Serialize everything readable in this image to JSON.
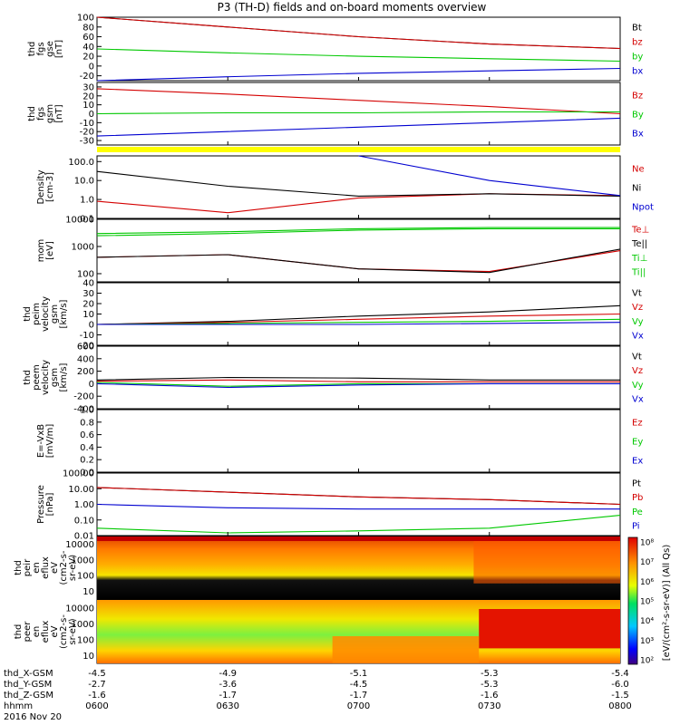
{
  "title": "P3 (TH-D) fields and on-board moments overview",
  "panels": [
    {
      "id": "fgs-dsl",
      "ylabel": [
        "thd",
        "fgs",
        "gse",
        "[nT]"
      ],
      "yticks": [
        "100",
        "80",
        "60",
        "40",
        "20",
        "0",
        "-20"
      ],
      "legend": [
        {
          "text": "Bt",
          "color": "#000000"
        },
        {
          "text": "bz",
          "color": "#d40000"
        },
        {
          "text": "by",
          "color": "#00c800"
        },
        {
          "text": "bx",
          "color": "#0000d0"
        }
      ]
    },
    {
      "id": "fgs-gsm",
      "ylabel": [
        "thd",
        "fgs",
        "gsm",
        "[nT]"
      ],
      "yticks": [
        "30",
        "20",
        "10",
        "0",
        "-10",
        "-20",
        "-30"
      ],
      "legend": [
        {
          "text": "Bz",
          "color": "#d40000"
        },
        {
          "text": "By",
          "color": "#00c800"
        },
        {
          "text": "Bx",
          "color": "#0000d0"
        }
      ]
    },
    {
      "id": "density",
      "ylabel": [
        "Density",
        "[cm-3]"
      ],
      "yticks": [
        "100.0",
        "10.0",
        "1.0",
        "0.1"
      ],
      "legend": [
        {
          "text": "Ne",
          "color": "#d40000"
        },
        {
          "text": "Ni",
          "color": "#000000"
        },
        {
          "text": "Npot",
          "color": "#0000d0"
        }
      ]
    },
    {
      "id": "temp",
      "ylabel": [
        "mom",
        "[eV]"
      ],
      "yticks": [
        "10000",
        "1000",
        "100"
      ],
      "legend": [
        {
          "text": "Te⊥",
          "color": "#d40000"
        },
        {
          "text": "Te||",
          "color": "#000000"
        },
        {
          "text": "Ti⊥",
          "color": "#00c800"
        },
        {
          "text": "Ti||",
          "color": "#00c800"
        }
      ]
    },
    {
      "id": "peim-vel",
      "ylabel": [
        "thd",
        "peim",
        "velocity",
        "gsm",
        "[km/s]"
      ],
      "yticks": [
        "40",
        "30",
        "20",
        "10",
        "0",
        "-10",
        "-20"
      ],
      "legend": [
        {
          "text": "Vt",
          "color": "#000000"
        },
        {
          "text": "Vz",
          "color": "#d40000"
        },
        {
          "text": "Vy",
          "color": "#00c800"
        },
        {
          "text": "Vx",
          "color": "#0000d0"
        }
      ]
    },
    {
      "id": "peem-vel",
      "ylabel": [
        "thd",
        "peem",
        "velocity",
        "gsm",
        "[km/s]"
      ],
      "yticks": [
        "600",
        "400",
        "200",
        "0",
        "-200",
        "-400"
      ],
      "legend": [
        {
          "text": "Vt",
          "color": "#000000"
        },
        {
          "text": "Vz",
          "color": "#d40000"
        },
        {
          "text": "Vy",
          "color": "#00c800"
        },
        {
          "text": "Vx",
          "color": "#0000d0"
        }
      ]
    },
    {
      "id": "efield",
      "ylabel": [
        "E=-VxB",
        "[mV/m]"
      ],
      "yticks": [
        "1.0",
        "0.8",
        "0.6",
        "0.4",
        "0.2",
        "0.0"
      ],
      "legend": [
        {
          "text": "Ez",
          "color": "#d40000"
        },
        {
          "text": "Ey",
          "color": "#00c800"
        },
        {
          "text": "Ex",
          "color": "#0000d0"
        }
      ]
    },
    {
      "id": "pressure",
      "ylabel": [
        "Pressure",
        "[nPa]"
      ],
      "yticks": [
        "100.00",
        "10.00",
        "1.00",
        "0.10",
        "0.01"
      ],
      "legend": [
        {
          "text": "Pt",
          "color": "#000000"
        },
        {
          "text": "Pb",
          "color": "#d40000"
        },
        {
          "text": "Pe",
          "color": "#00c800"
        },
        {
          "text": "Pi",
          "color": "#0000d0"
        }
      ]
    },
    {
      "id": "peir",
      "ylabel": [
        "thd",
        "peir",
        "en",
        "eflux",
        "eV",
        "(cm2-s-",
        "sr-eV)"
      ],
      "yticks": [
        "10000",
        "1000",
        "100",
        "10"
      ]
    },
    {
      "id": "peer",
      "ylabel": [
        "thd",
        "peer",
        "en",
        "eflux",
        "eV",
        "(cm2-s-",
        "sr-eV)"
      ],
      "yticks": [
        "10000",
        "1000",
        "100",
        "10"
      ]
    }
  ],
  "colorbar": {
    "ticks": [
      "10⁸",
      "10⁷",
      "10⁶",
      "10⁵",
      "10⁴",
      "10³",
      "10²"
    ],
    "label": "[eV/(cm²-s-sr-eV)] (All Qs)"
  },
  "xaxis": {
    "row_labels": [
      "thd_X-GSM",
      "thd_Y-GSM",
      "thd_Z-GSM",
      "hhmm",
      "2016 Nov 20"
    ],
    "ticks": [
      {
        "x": "-4.5",
        "y": "-2.7",
        "z": "-1.6",
        "t": "0600"
      },
      {
        "x": "-4.9",
        "y": "-3.6",
        "z": "-1.7",
        "t": "0630"
      },
      {
        "x": "-5.1",
        "y": "-4.5",
        "z": "-1.7",
        "t": "0700"
      },
      {
        "x": "-5.3",
        "y": "-5.3",
        "z": "-1.6",
        "t": "0730"
      },
      {
        "x": "-5.4",
        "y": "-6.0",
        "z": "-1.5",
        "t": "0800"
      }
    ]
  },
  "chart_data": [
    {
      "type": "line",
      "title": "",
      "ylabel": "thd fgs gse [nT]",
      "ylim": [
        -30,
        100
      ],
      "x": [
        "0600",
        "0630",
        "0700",
        "0730",
        "0800"
      ],
      "series": [
        {
          "name": "Bt",
          "values": [
            100,
            80,
            60,
            45,
            36
          ]
        },
        {
          "name": "bz",
          "values": [
            100,
            80,
            60,
            45,
            36
          ]
        },
        {
          "name": "by",
          "values": [
            35,
            27,
            20,
            15,
            10
          ]
        },
        {
          "name": "bx",
          "values": [
            -30,
            -22,
            -15,
            -10,
            -5
          ]
        }
      ]
    },
    {
      "type": "line",
      "title": "",
      "ylabel": "thd fgs gsm [nT]",
      "ylim": [
        -35,
        35
      ],
      "x": [
        "0600",
        "0630",
        "0700",
        "0730",
        "0800"
      ],
      "series": [
        {
          "name": "Bz",
          "values": [
            28,
            22,
            15,
            8,
            0
          ]
        },
        {
          "name": "By",
          "values": [
            0,
            1,
            1,
            2,
            2
          ]
        },
        {
          "name": "Bx",
          "values": [
            -25,
            -20,
            -15,
            -10,
            -5
          ]
        }
      ]
    },
    {
      "type": "line",
      "title": "",
      "ylabel": "Density [cm-3]",
      "log": true,
      "ylim": [
        0.1,
        200
      ],
      "x": [
        "0600",
        "0630",
        "0700",
        "0730",
        "0800"
      ],
      "series": [
        {
          "name": "Ne",
          "values": [
            0.8,
            0.2,
            1.2,
            2.0,
            1.6
          ]
        },
        {
          "name": "Ni",
          "values": [
            30,
            5,
            1.5,
            2.0,
            1.5
          ]
        },
        {
          "name": "Npot",
          "values": [
            null,
            null,
            200,
            10,
            1.6
          ]
        }
      ]
    },
    {
      "type": "line",
      "title": "",
      "ylabel": "mom [eV]",
      "log": true,
      "ylim": [
        50,
        10000
      ],
      "x": [
        "0600",
        "0630",
        "0700",
        "0730",
        "0800"
      ],
      "series": [
        {
          "name": "Te⊥",
          "values": [
            400,
            500,
            150,
            120,
            700
          ]
        },
        {
          "name": "Te||",
          "values": [
            400,
            500,
            150,
            110,
            800
          ]
        },
        {
          "name": "Ti⊥",
          "values": [
            3000,
            3500,
            4500,
            5000,
            5000
          ]
        },
        {
          "name": "Ti||",
          "values": [
            2500,
            3000,
            4000,
            4500,
            4500
          ]
        }
      ]
    },
    {
      "type": "line",
      "title": "",
      "ylabel": "thd peim velocity gsm [km/s]",
      "ylim": [
        -20,
        40
      ],
      "x": [
        "0600",
        "0630",
        "0700",
        "0730",
        "0800"
      ],
      "series": [
        {
          "name": "Vt",
          "values": [
            0,
            3,
            8,
            12,
            18
          ]
        },
        {
          "name": "Vz",
          "values": [
            0,
            2,
            5,
            8,
            10
          ]
        },
        {
          "name": "Vy",
          "values": [
            0,
            1,
            2,
            3,
            5
          ]
        },
        {
          "name": "Vx",
          "values": [
            0,
            0,
            0,
            1,
            2
          ]
        }
      ]
    },
    {
      "type": "line",
      "title": "",
      "ylabel": "thd peem velocity gsm [km/s]",
      "ylim": [
        -400,
        600
      ],
      "x": [
        "0600",
        "0630",
        "0700",
        "0730",
        "0800"
      ],
      "series": [
        {
          "name": "Vt",
          "values": [
            60,
            100,
            90,
            60,
            60
          ]
        },
        {
          "name": "Vz",
          "values": [
            40,
            60,
            30,
            30,
            30
          ]
        },
        {
          "name": "Vy",
          "values": [
            20,
            -40,
            0,
            0,
            0
          ]
        },
        {
          "name": "Vx",
          "values": [
            0,
            -60,
            -20,
            0,
            0
          ]
        }
      ]
    },
    {
      "type": "line",
      "title": "",
      "ylabel": "E=-VxB [mV/m]",
      "ylim": [
        0,
        1
      ],
      "x": [
        "0600",
        "0630",
        "0700",
        "0730",
        "0800"
      ],
      "series": []
    },
    {
      "type": "line",
      "title": "",
      "ylabel": "Pressure [nPa]",
      "log": true,
      "ylim": [
        0.01,
        100
      ],
      "x": [
        "0600",
        "0630",
        "0700",
        "0730",
        "0800"
      ],
      "series": [
        {
          "name": "Pt",
          "values": [
            12,
            6,
            3,
            2,
            1
          ]
        },
        {
          "name": "Pb",
          "values": [
            12,
            6,
            3,
            2,
            1
          ]
        },
        {
          "name": "Pe",
          "values": [
            0.03,
            0.015,
            0.02,
            0.03,
            0.2
          ]
        },
        {
          "name": "Pi",
          "values": [
            1.0,
            0.6,
            0.5,
            0.5,
            0.5
          ]
        }
      ]
    },
    {
      "type": "heatmap",
      "title": "",
      "ylabel": "thd peir en eflux",
      "log": true,
      "ylim": [
        5,
        25000
      ],
      "x": [
        "0600",
        "0630",
        "0700",
        "0730",
        "0800"
      ]
    },
    {
      "type": "heatmap",
      "title": "",
      "ylabel": "thd peer en eflux",
      "log": true,
      "ylim": [
        5,
        25000
      ],
      "x": [
        "0600",
        "0630",
        "0700",
        "0730",
        "0800"
      ]
    }
  ]
}
